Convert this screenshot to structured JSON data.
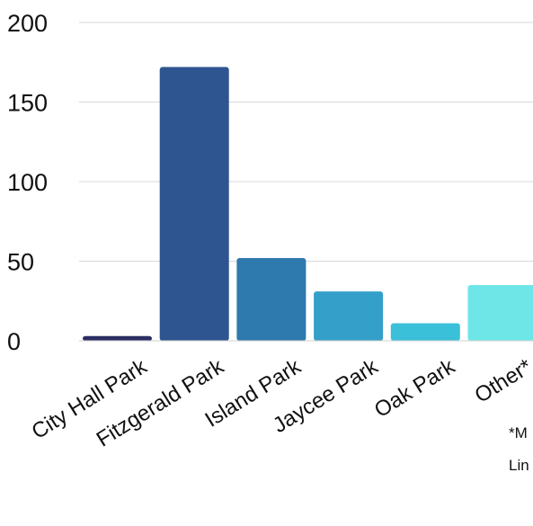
{
  "chart_data": {
    "type": "bar",
    "categories": [
      "City Hall Park",
      "Fitzgerald Park",
      "Island Park",
      "Jaycee Park",
      "Oak Park",
      "Other*"
    ],
    "values": [
      3,
      172,
      52,
      31,
      11,
      35
    ],
    "colors": [
      "#2b2e63",
      "#2f5590",
      "#2e79ad",
      "#34a0c9",
      "#3ac0d8",
      "#6ee6e8"
    ],
    "yticks": [
      0,
      50,
      100,
      150,
      200
    ],
    "ylim": [
      0,
      200
    ],
    "grid": true,
    "legend": "none",
    "title": "",
    "xlabel": "",
    "ylabel": "",
    "footnote_lines": [
      "*M",
      "Lin"
    ]
  }
}
